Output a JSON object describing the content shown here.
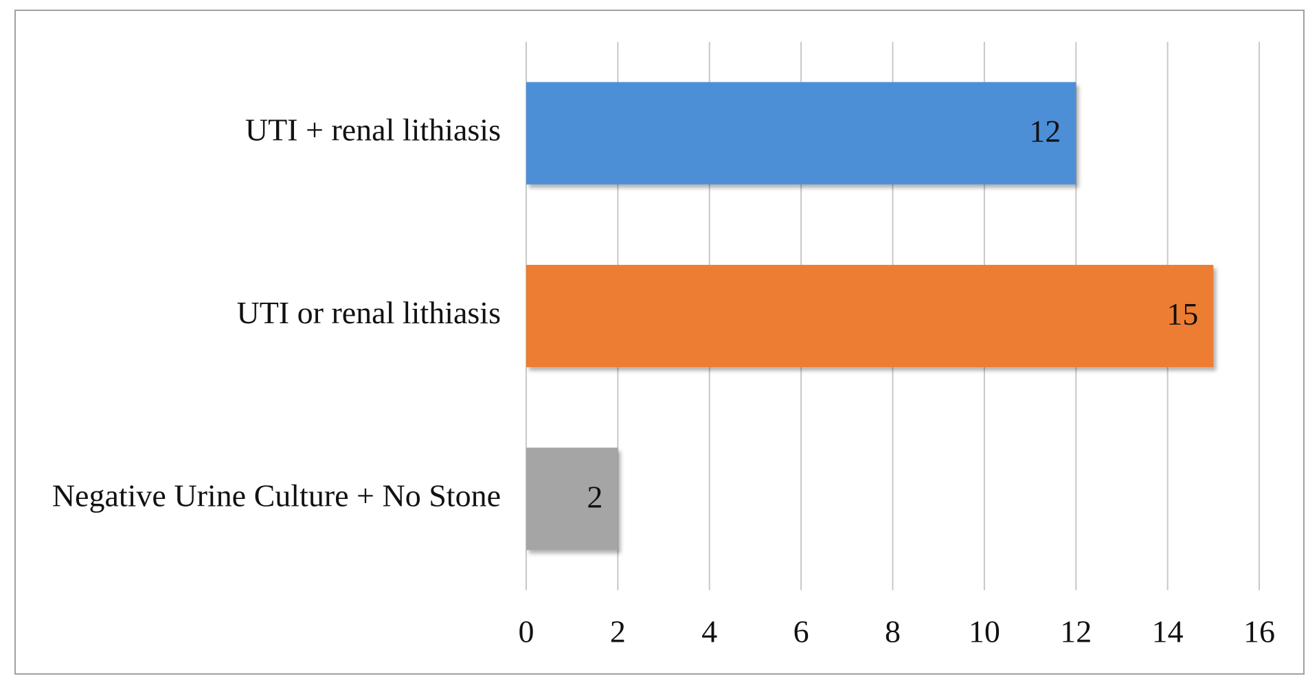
{
  "chart_data": {
    "type": "barh",
    "categories": [
      "UTI + renal lithiasis",
      "UTI or renal lithiasis",
      "Negative Urine Culture + No Stone"
    ],
    "values": [
      12,
      15,
      2
    ],
    "colors": [
      "#4d8fd6",
      "#ed7d31",
      "#a5a5a5"
    ],
    "xlim": [
      0,
      16
    ],
    "xticks": [
      0,
      2,
      4,
      6,
      8,
      10,
      12,
      14,
      16
    ],
    "grid": true
  }
}
